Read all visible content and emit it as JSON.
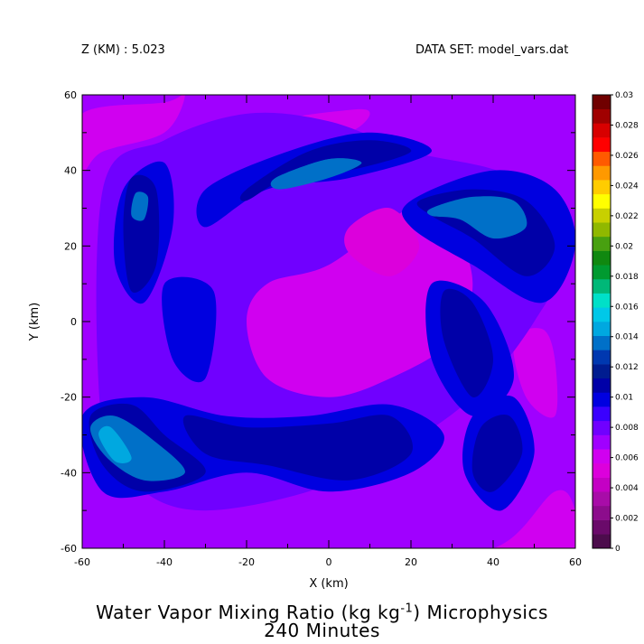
{
  "header": {
    "z_label": "Z (KM) : 5.023",
    "dataset_label": "DATA SET: model_vars.dat"
  },
  "title": {
    "line1_pre": "Water Vapor Mixing Ratio (kg kg",
    "line1_sup": "-1",
    "line1_post": ") Microphysics",
    "line2": "240 Minutes"
  },
  "chart_data": {
    "type": "heatmap",
    "subtype": "filled contour",
    "xlabel": "X (km)",
    "ylabel": "Y (km)",
    "xlim": [
      -60,
      60
    ],
    "ylim": [
      -60,
      60
    ],
    "x_ticks": [
      "-60",
      "-40",
      "-20",
      "0",
      "20",
      "40",
      "60"
    ],
    "y_ticks": [
      "-60",
      "-40",
      "-20",
      "0",
      "20",
      "40",
      "60"
    ],
    "x_tick_values": [
      -60,
      -40,
      -20,
      0,
      20,
      40,
      60
    ],
    "y_tick_values": [
      -60,
      -40,
      -20,
      0,
      20,
      40,
      60
    ],
    "colorbar": {
      "min": 0,
      "max": 0.03,
      "step": 0.001,
      "labels": [
        "0",
        "0.002",
        "0.004",
        "0.006",
        "0.008",
        "0.01",
        "0.012",
        "0.014",
        "0.016",
        "0.018",
        "0.02",
        "0.022",
        "0.024",
        "0.026",
        "0.028",
        "0.03"
      ],
      "colors": [
        "#4c0c4c",
        "#6a0a6a",
        "#8c0c8c",
        "#a80ca8",
        "#c400c4",
        "#dc00dc",
        "#d000f0",
        "#a000ff",
        "#7000ff",
        "#3a00ff",
        "#0000e0",
        "#0000a8",
        "#001c90",
        "#0038b0",
        "#0070c8",
        "#00a8e0",
        "#00c8e8",
        "#00e0c8",
        "#00b878",
        "#009a30",
        "#108810",
        "#48a010",
        "#90b800",
        "#c8d000",
        "#ffff00",
        "#ffcc00",
        "#ff9900",
        "#ff5a00",
        "#ff0000",
        "#d80000",
        "#a00000",
        "#700000"
      ]
    },
    "field_regions": [
      {
        "value": 0.0065,
        "color": "#a000ff",
        "x": [
          -60,
          60,
          60,
          -60
        ],
        "y": [
          60,
          60,
          -60,
          -60
        ]
      },
      {
        "value": 0.006,
        "color": "#d000f0",
        "x": [
          -60,
          -40,
          -35,
          -40,
          -55,
          -60
        ],
        "y": [
          55,
          58,
          60,
          50,
          45,
          40
        ]
      },
      {
        "value": 0.006,
        "color": "#d000f0",
        "x": [
          -28,
          -15,
          5,
          10,
          5,
          -10,
          -25,
          -32
        ],
        "y": [
          40,
          52,
          56,
          55,
          50,
          45,
          30,
          25
        ]
      },
      {
        "value": 0.006,
        "color": "#d000f0",
        "x": [
          10,
          40,
          55,
          60,
          60,
          50
        ],
        "y": [
          -60,
          -60,
          -45,
          -50,
          -60,
          -60
        ]
      },
      {
        "value": 0.006,
        "color": "#d000f0",
        "x": [
          45,
          52,
          55,
          55,
          48
        ],
        "y": [
          -5,
          -2,
          -10,
          -25,
          -20
        ]
      },
      {
        "value": 0.008,
        "color": "#7000ff",
        "x": [
          -55,
          -40,
          -20,
          0,
          20,
          45,
          58,
          50,
          35,
          15,
          -5,
          -30,
          -45,
          -55
        ],
        "y": [
          35,
          48,
          55,
          53,
          45,
          38,
          20,
          0,
          -20,
          -35,
          -45,
          -50,
          -45,
          -30
        ]
      },
      {
        "value": 0.006,
        "color": "#d000f0",
        "x": [
          -15,
          0,
          20,
          30,
          35,
          30,
          15,
          0,
          -15,
          -20
        ],
        "y": [
          10,
          15,
          30,
          25,
          10,
          -5,
          -15,
          -20,
          -15,
          0
        ]
      },
      {
        "value": 0.005,
        "color": "#dc00dc",
        "x": [
          5,
          15,
          22,
          15,
          5
        ],
        "y": [
          25,
          30,
          20,
          12,
          18
        ]
      },
      {
        "value": 0.0095,
        "color": "#0000e0",
        "x": [
          -50,
          -40,
          -38,
          -45,
          -52
        ],
        "y": [
          35,
          42,
          25,
          5,
          15
        ]
      },
      {
        "value": 0.0095,
        "color": "#0000e0",
        "x": [
          -30,
          -10,
          10,
          25,
          5,
          -15,
          -30
        ],
        "y": [
          35,
          45,
          50,
          45,
          38,
          35,
          25
        ]
      },
      {
        "value": 0.0095,
        "color": "#0000e0",
        "x": [
          20,
          40,
          55,
          60,
          52,
          35,
          20
        ],
        "y": [
          32,
          40,
          35,
          20,
          5,
          15,
          25
        ]
      },
      {
        "value": 0.0095,
        "color": "#0000e0",
        "x": [
          -40,
          -28,
          -30,
          -38
        ],
        "y": [
          10,
          8,
          -15,
          -10
        ]
      },
      {
        "value": 0.0095,
        "color": "#0000e0",
        "x": [
          25,
          38,
          45,
          35,
          25
        ],
        "y": [
          10,
          5,
          -15,
          -25,
          -10
        ]
      },
      {
        "value": 0.0095,
        "color": "#0000e0",
        "x": [
          -60,
          -45,
          -25,
          -5,
          15,
          28,
          20,
          0,
          -20,
          -40,
          -55
        ],
        "y": [
          -25,
          -20,
          -25,
          -25,
          -22,
          -30,
          -40,
          -45,
          -40,
          -45,
          -45
        ]
      },
      {
        "value": 0.0095,
        "color": "#0000e0",
        "x": [
          35,
          45,
          50,
          42,
          33
        ],
        "y": [
          -25,
          -20,
          -35,
          -50,
          -40
        ]
      },
      {
        "value": 0.0105,
        "color": "#0000a8",
        "x": [
          -48,
          -42,
          -42,
          -48,
          -50
        ],
        "y": [
          38,
          35,
          15,
          8,
          25
        ]
      },
      {
        "value": 0.0105,
        "color": "#0000a8",
        "x": [
          -20,
          -5,
          10,
          20,
          5,
          -10,
          -20
        ],
        "y": [
          35,
          45,
          48,
          45,
          40,
          38,
          32
        ]
      },
      {
        "value": 0.0105,
        "color": "#0000a8",
        "x": [
          22,
          35,
          48,
          55,
          48,
          35,
          25
        ],
        "y": [
          32,
          35,
          32,
          20,
          12,
          22,
          28
        ]
      },
      {
        "value": 0.0105,
        "color": "#0000a8",
        "x": [
          28,
          35,
          40,
          35,
          28
        ],
        "y": [
          8,
          5,
          -10,
          -20,
          -5
        ]
      },
      {
        "value": 0.0105,
        "color": "#0000a8",
        "x": [
          -35,
          -20,
          0,
          15,
          20,
          5,
          -15,
          -30
        ],
        "y": [
          -25,
          -28,
          -27,
          -25,
          -35,
          -42,
          -38,
          -35
        ]
      },
      {
        "value": 0.0105,
        "color": "#0000a8",
        "x": [
          -58,
          -48,
          -40,
          -30,
          -45,
          -55
        ],
        "y": [
          -25,
          -22,
          -30,
          -40,
          -45,
          -38
        ]
      },
      {
        "value": 0.0105,
        "color": "#0000a8",
        "x": [
          37,
          44,
          47,
          40,
          35
        ],
        "y": [
          -28,
          -25,
          -35,
          -45,
          -40
        ]
      },
      {
        "value": 0.012,
        "color": "#0070c8",
        "x": [
          -47,
          -44,
          -45,
          -48
        ],
        "y": [
          34,
          33,
          27,
          28
        ]
      },
      {
        "value": 0.012,
        "color": "#0070c8",
        "x": [
          -13,
          0,
          8,
          0,
          -12
        ],
        "y": [
          38,
          43,
          42,
          38,
          35
        ]
      },
      {
        "value": 0.012,
        "color": "#0070c8",
        "x": [
          25,
          35,
          45,
          48,
          40,
          32,
          25
        ],
        "y": [
          30,
          33,
          32,
          25,
          22,
          27,
          28
        ]
      },
      {
        "value": 0.012,
        "color": "#0070c8",
        "x": [
          -58,
          -52,
          -42,
          -35,
          -45,
          -54
        ],
        "y": [
          -28,
          -25,
          -32,
          -40,
          -42,
          -36
        ]
      },
      {
        "value": 0.0135,
        "color": "#00a8e0",
        "x": [
          -56,
          -53,
          -48,
          -52
        ],
        "y": [
          -30,
          -28,
          -36,
          -37
        ]
      },
      {
        "value": 0.0125,
        "color": "#0070c8",
        "x": [
          -8,
          0,
          6,
          0,
          -8
        ],
        "y": [
          40,
          43,
          42,
          40,
          37
        ]
      }
    ]
  }
}
